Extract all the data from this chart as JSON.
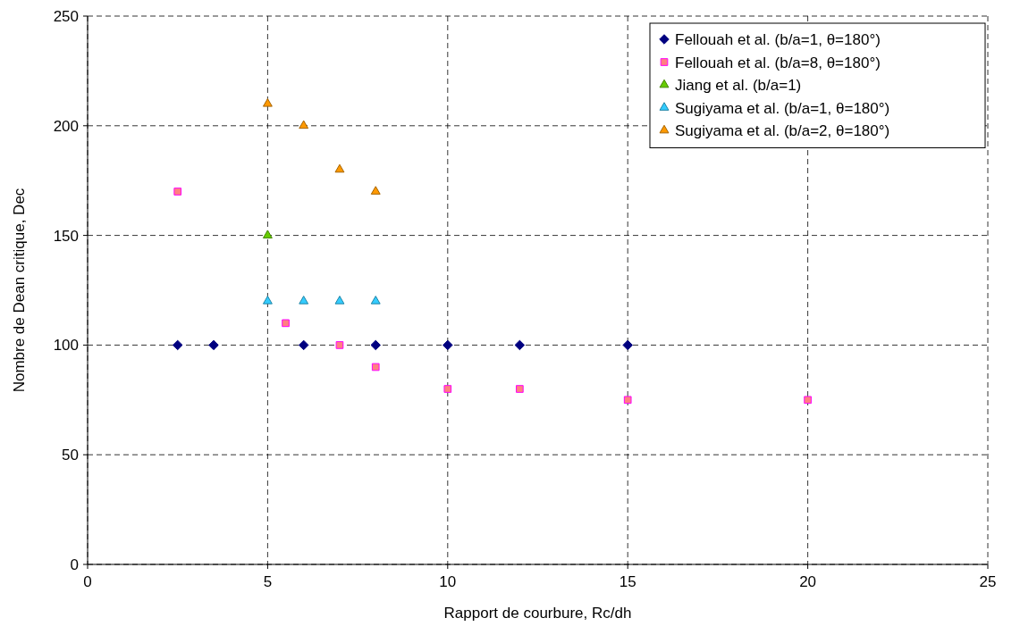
{
  "chart_data": {
    "type": "scatter",
    "xlabel": "Rapport de courbure, Rc/dh",
    "ylabel": "Nombre de Dean critique, Dec",
    "xlim": [
      0,
      25
    ],
    "xticks": [
      0,
      5,
      10,
      15,
      20,
      25
    ],
    "ylim": [
      0,
      250
    ],
    "yticks": [
      0,
      50,
      100,
      150,
      200,
      250
    ],
    "grid": true,
    "legend": "top right",
    "series": [
      {
        "name": "Fellouah et al. (b/a=1, θ=180°)",
        "color": "#000080",
        "marker": "diamond",
        "x": [
          2.5,
          3.5,
          6,
          8,
          10,
          12,
          15
        ],
        "values": [
          100,
          100,
          100,
          100,
          100,
          100,
          100
        ]
      },
      {
        "name": "Fellouah et al. (b/a=8, θ=180°)",
        "color": "#ff8080",
        "marker": "square",
        "x": [
          2.5,
          5.5,
          7,
          8,
          10,
          12,
          15,
          20
        ],
        "values": [
          170,
          110,
          100,
          90,
          80,
          80,
          75,
          75
        ]
      },
      {
        "name": "Jiang et al. (b/a=1)",
        "color": "#66cc00",
        "marker": "triangle",
        "x": [
          5
        ],
        "values": [
          150
        ]
      },
      {
        "name": "Sugiyama et al. (b/a=1, θ=180°)",
        "color": "#33ccff",
        "marker": "triangle",
        "x": [
          5,
          6,
          7,
          8
        ],
        "values": [
          120,
          120,
          120,
          120
        ]
      },
      {
        "name": "Sugiyama et al. (b/a=2, θ=180°)",
        "color": "#ff9900",
        "marker": "triangle",
        "x": [
          5,
          6,
          7,
          8
        ],
        "values": [
          210,
          200,
          180,
          170
        ]
      }
    ]
  }
}
